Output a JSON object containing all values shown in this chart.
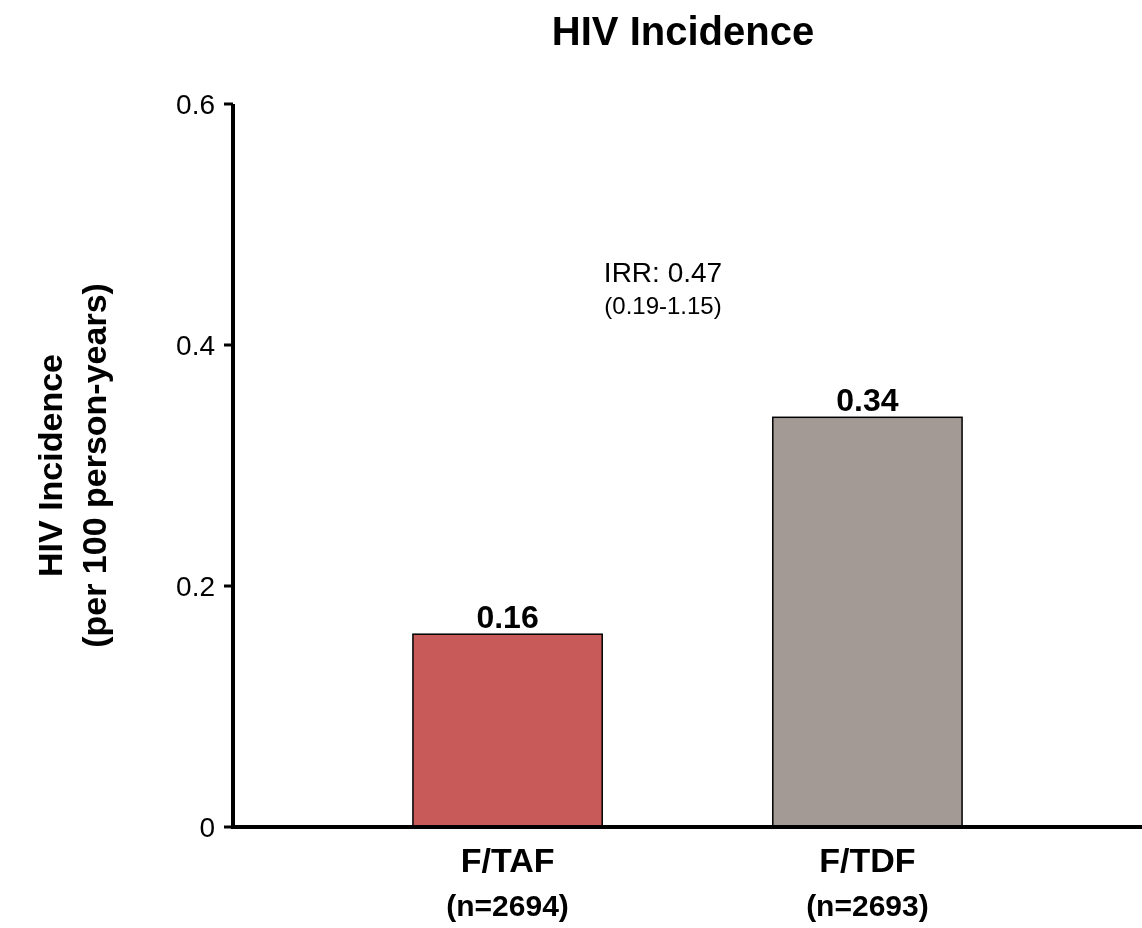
{
  "chart_data": {
    "type": "bar",
    "title": "HIV Incidence",
    "ylabel": "HIV Incidence\n(per 100 person-years)",
    "categories": [
      "F/TAF\n(n=2694)",
      "F/TDF\n(n=2693)"
    ],
    "values": [
      0.16,
      0.34
    ],
    "colors": [
      "#c85a5a",
      "#a39a95"
    ],
    "ylim": [
      0,
      0.6
    ],
    "yticks": [
      {
        "value": 0,
        "label": "0"
      },
      0.2,
      0.4,
      0.6
    ],
    "data_labels": true,
    "annotations": [
      "IRR: 0.47",
      "(0.19-1.15)"
    ]
  }
}
